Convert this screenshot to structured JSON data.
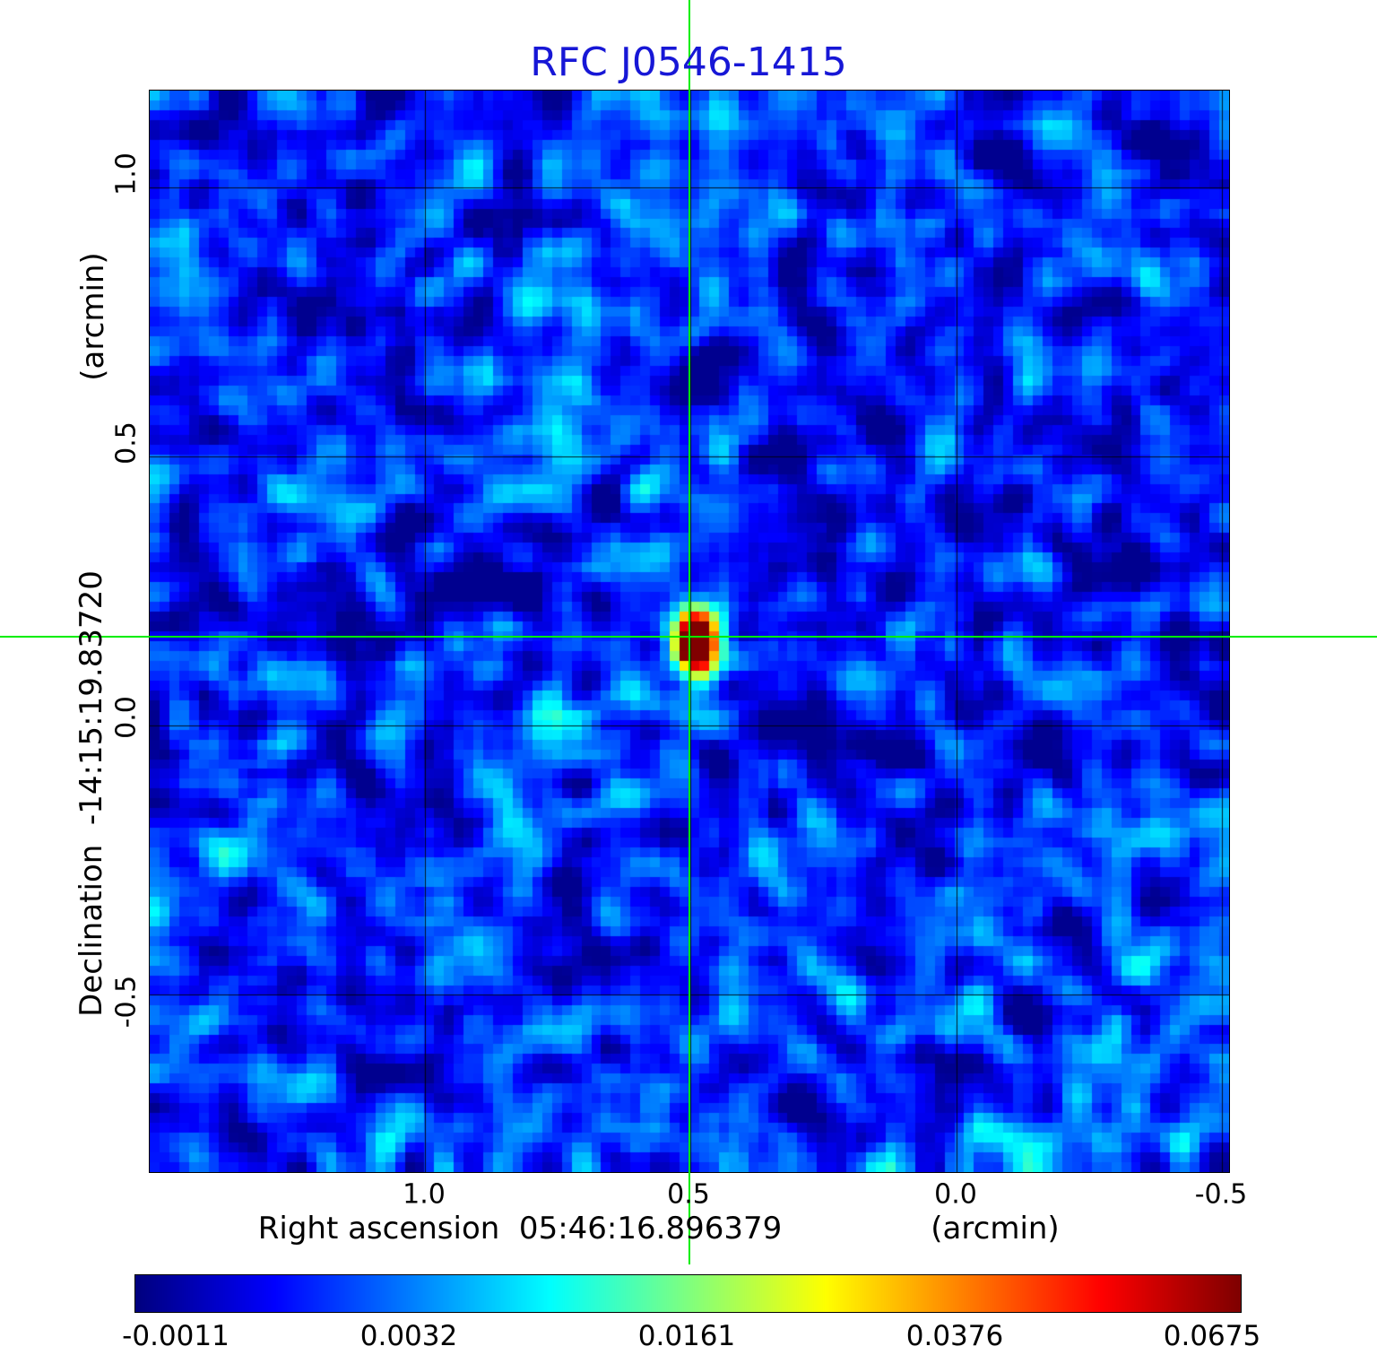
{
  "title": "RFC J0546-1415",
  "colors": {
    "title_text": "#1717d6",
    "crosshair": "#00ee00",
    "grid": "#000000",
    "background": "#ffffff"
  },
  "chart_data": {
    "type": "heatmap",
    "title": "RFC J0546-1415",
    "x_axis": {
      "label": "Right ascension  05:46:16.896379",
      "unit": "(arcmin)",
      "tick_labels": [
        "1.0",
        "0.5",
        "0.0",
        "-0.5"
      ],
      "tick_values": [
        1.0,
        0.5,
        0.0,
        -0.5
      ],
      "range": [
        1.517,
        -0.513
      ]
    },
    "y_axis": {
      "label": "Declination  -14:15:19.83720",
      "unit": "(arcmin)",
      "tick_labels": [
        "1.0",
        "0.5",
        "0.0",
        "-0.5"
      ],
      "tick_values": [
        1.0,
        0.5,
        0.0,
        -0.5
      ],
      "range": [
        -0.83,
        1.18
      ]
    },
    "source": {
      "name": "RFC J0546-1415",
      "right_ascension": "05:46:16.896379",
      "declination": "-14:15:19.83720",
      "ra_offset_arcmin": 0.5,
      "dec_offset_arcmin": 0.163,
      "peak_intensity": 0.0675
    },
    "crosshair": {
      "x_arcmin": 0.5,
      "y_arcmin": 0.163
    },
    "colorbar": {
      "colormap": "jet",
      "min": -0.0011,
      "max": 0.0675,
      "tick_labels": [
        "-0.0011",
        "0.0032",
        "0.0161",
        "0.0376",
        "0.0675"
      ],
      "tick_values": [
        -0.0011,
        0.0032,
        0.0161,
        0.0376,
        0.0675
      ]
    },
    "grid": "on",
    "legend": "none"
  }
}
